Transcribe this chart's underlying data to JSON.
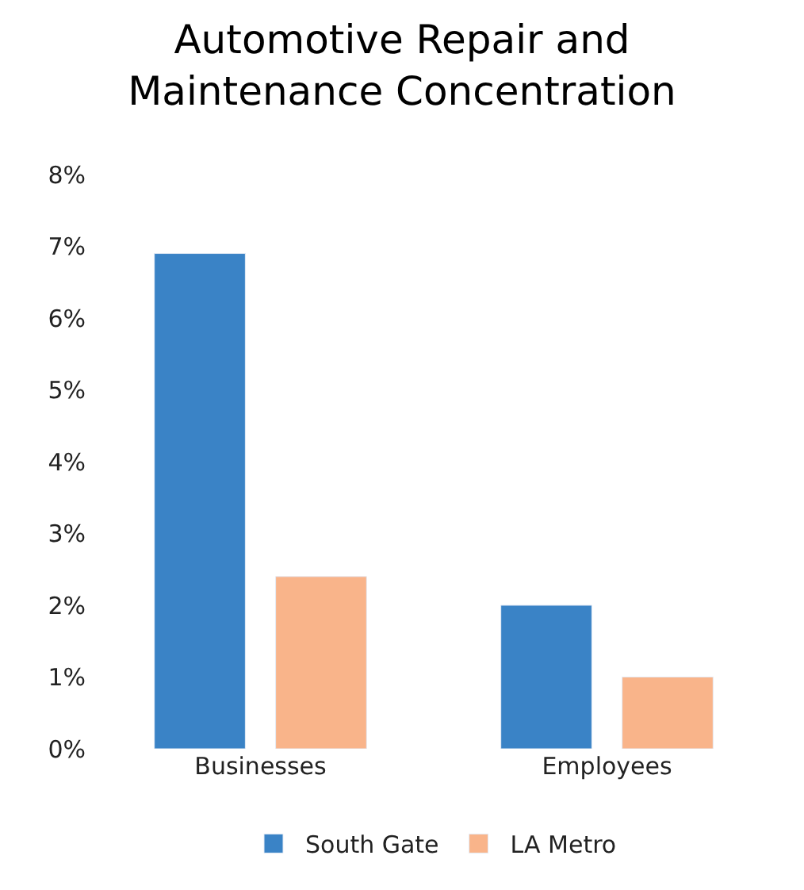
{
  "chart_data": {
    "type": "bar",
    "title": "Automotive Repair and\nMaintenance Concentration",
    "categories": [
      "Businesses",
      "Employees"
    ],
    "series": [
      {
        "name": "South Gate",
        "color": "#3a83c6",
        "values": [
          6.9,
          2.0
        ]
      },
      {
        "name": "LA Metro",
        "color": "#f9b48a",
        "values": [
          2.4,
          1.0
        ]
      }
    ],
    "ylim": [
      0,
      8
    ],
    "yticks": [
      {
        "value": 0,
        "label": "0%"
      },
      {
        "value": 1,
        "label": "1%"
      },
      {
        "value": 2,
        "label": "2%"
      },
      {
        "value": 3,
        "label": "3%"
      },
      {
        "value": 4,
        "label": "4%"
      },
      {
        "value": 5,
        "label": "5%"
      },
      {
        "value": 6,
        "label": "6%"
      },
      {
        "value": 7,
        "label": "7%"
      },
      {
        "value": 8,
        "label": "8%"
      }
    ],
    "legend": "bottom"
  }
}
